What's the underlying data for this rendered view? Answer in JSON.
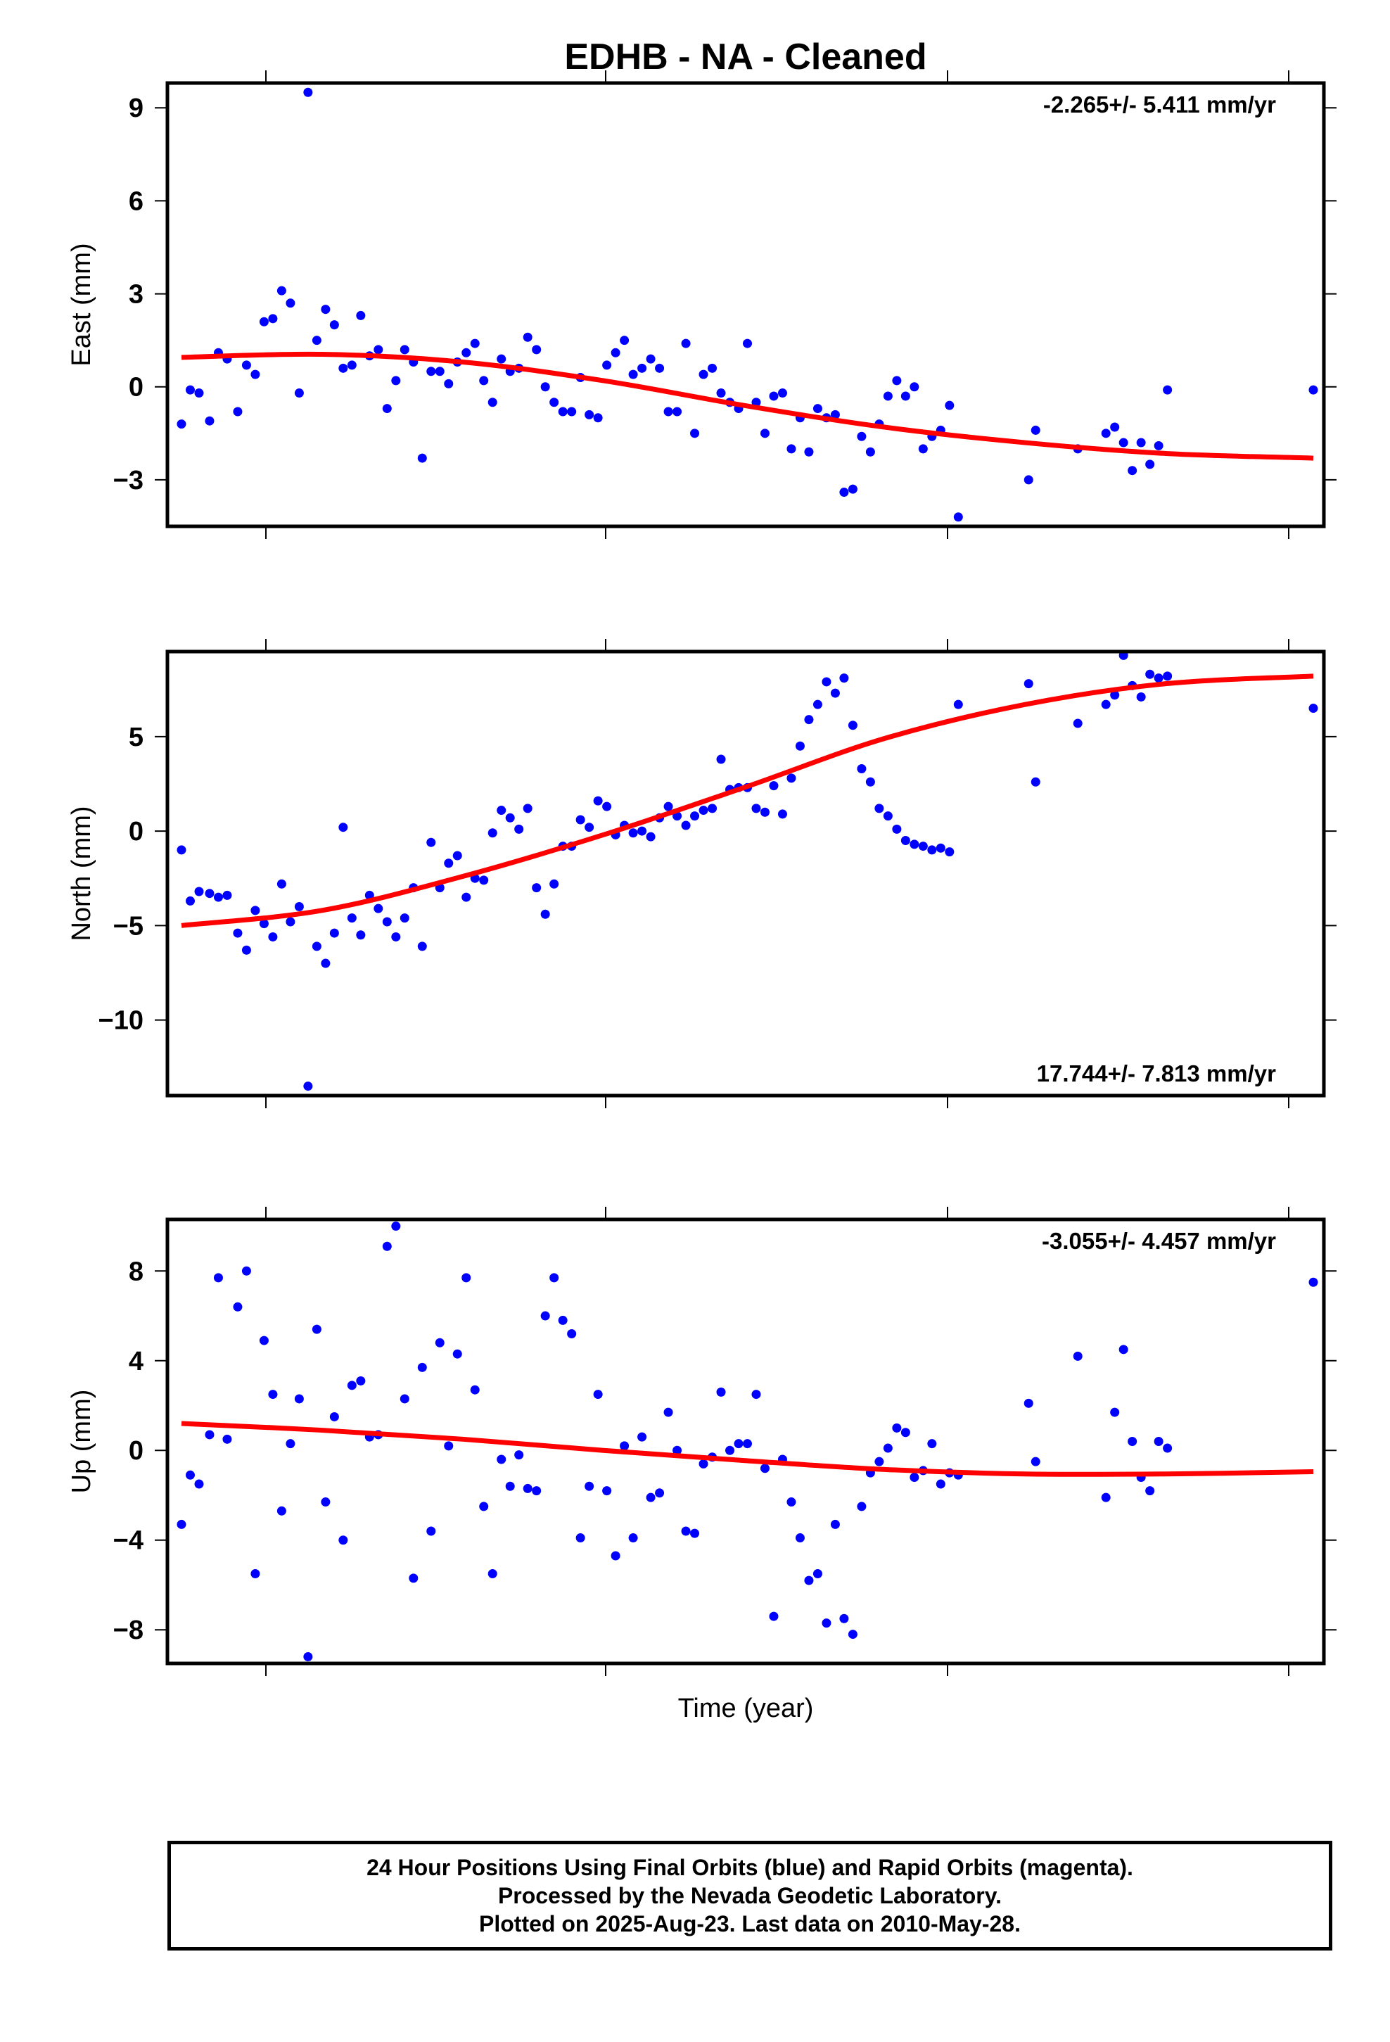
{
  "title": "EDHB  - NA - Cleaned",
  "xlabel": "Time (year)",
  "colors": {
    "points": "#0000ff",
    "fit": "#ff0000",
    "frame": "#000000"
  },
  "footer": {
    "line1": "24 Hour Positions Using Final Orbits (blue) and Rapid Orbits (magenta).",
    "line2": "Processed by the Nevada Geodetic Laboratory.",
    "line3": "Plotted on 2025-Aug-23. Last data on 2010-May-28."
  },
  "chart_data": [
    {
      "type": "scatter",
      "ylabel": "East (mm)",
      "rate_label": "-2.265+/- 5.411 mm/yr",
      "rate_position": "top-right",
      "ylim": [
        -4.5,
        9.8
      ],
      "yticks": [
        -3,
        0,
        3,
        6,
        9
      ],
      "yticklabels": [
        "−3",
        "0",
        "3",
        "6",
        "9"
      ],
      "x": [
        0.0,
        0.025,
        0.05,
        0.08,
        0.105,
        0.13,
        0.16,
        0.185,
        0.21,
        0.235,
        0.26,
        0.285,
        0.31,
        0.335,
        0.36,
        0.385,
        0.41,
        0.435,
        0.46,
        0.485,
        0.51,
        0.535,
        0.56,
        0.585,
        0.61,
        0.635,
        0.66,
        0.685,
        0.71,
        0.735,
        0.76,
        0.785,
        0.81,
        0.835,
        0.86,
        0.885,
        0.91,
        0.935,
        0.96,
        0.985,
        1.01,
        1.035,
        1.06,
        1.085,
        1.11,
        1.135,
        1.16,
        1.185,
        1.21,
        1.235,
        1.26,
        1.285,
        1.31,
        1.335,
        1.36,
        1.385,
        1.41,
        1.435,
        1.46,
        1.485,
        1.51,
        1.535,
        1.56,
        1.585,
        1.61,
        1.635,
        1.66,
        1.685,
        1.71,
        1.735,
        1.76,
        1.785,
        1.81,
        1.835,
        1.86,
        1.885,
        1.91,
        1.935,
        1.96,
        1.985,
        2.01,
        2.035,
        2.06,
        2.085,
        2.11,
        2.135,
        2.16,
        2.185,
        2.21,
        2.41,
        2.43,
        2.55,
        2.63,
        2.655,
        2.68,
        2.705,
        2.73,
        2.755,
        2.78,
        2.805,
        3.22
      ],
      "values": [
        -1.2,
        -0.1,
        -0.2,
        -1.1,
        1.1,
        0.9,
        -0.8,
        0.7,
        0.4,
        2.1,
        2.2,
        3.1,
        2.7,
        -0.2,
        9.5,
        1.5,
        2.5,
        2.0,
        0.6,
        0.7,
        2.3,
        1.0,
        1.2,
        -0.7,
        0.2,
        1.2,
        0.8,
        -2.3,
        0.5,
        0.5,
        0.1,
        0.8,
        1.1,
        1.4,
        0.2,
        -0.5,
        0.9,
        0.5,
        0.6,
        1.6,
        1.2,
        0.0,
        -0.5,
        -0.8,
        -0.8,
        0.3,
        -0.9,
        -1.0,
        0.7,
        1.1,
        1.5,
        0.4,
        0.6,
        0.9,
        0.6,
        -0.8,
        -0.8,
        1.4,
        -1.5,
        0.4,
        0.6,
        -0.2,
        -0.5,
        -0.7,
        1.4,
        -0.5,
        -1.5,
        -0.3,
        -0.2,
        -2.0,
        -1.0,
        -2.1,
        -0.7,
        -1.0,
        -0.9,
        -3.4,
        -3.3,
        -1.6,
        -2.1,
        -1.2,
        -0.3,
        0.2,
        -0.3,
        0.0,
        -2.0,
        -1.6,
        -1.4,
        -0.6,
        -4.2,
        -3.0,
        -1.4,
        -2.0,
        -1.5,
        -1.3,
        -1.8,
        -2.7,
        -1.8,
        -2.5,
        -1.9,
        -0.1,
        -0.1
      ],
      "fit": {
        "x": [
          0.0,
          0.4,
          0.8,
          1.2,
          1.6,
          2.0,
          2.4,
          2.8,
          3.22
        ],
        "values": [
          0.95,
          1.05,
          0.8,
          0.2,
          -0.6,
          -1.3,
          -1.8,
          -2.15,
          -2.3
        ]
      }
    },
    {
      "type": "scatter",
      "ylabel": "North (mm)",
      "rate_label": "17.744+/- 7.813 mm/yr",
      "rate_position": "bottom-right",
      "ylim": [
        -14.0,
        9.5
      ],
      "yticks": [
        -10,
        -5,
        0,
        5
      ],
      "yticklabels": [
        "−10",
        "−5",
        "0",
        "5"
      ],
      "x": [
        0.0,
        0.025,
        0.05,
        0.08,
        0.105,
        0.13,
        0.16,
        0.185,
        0.21,
        0.235,
        0.26,
        0.285,
        0.31,
        0.335,
        0.36,
        0.385,
        0.41,
        0.435,
        0.46,
        0.485,
        0.51,
        0.535,
        0.56,
        0.585,
        0.61,
        0.635,
        0.66,
        0.685,
        0.71,
        0.735,
        0.76,
        0.785,
        0.81,
        0.835,
        0.86,
        0.885,
        0.91,
        0.935,
        0.96,
        0.985,
        1.01,
        1.035,
        1.06,
        1.085,
        1.11,
        1.135,
        1.16,
        1.185,
        1.21,
        1.235,
        1.26,
        1.285,
        1.31,
        1.335,
        1.36,
        1.385,
        1.41,
        1.435,
        1.46,
        1.485,
        1.51,
        1.535,
        1.56,
        1.585,
        1.61,
        1.635,
        1.66,
        1.685,
        1.71,
        1.735,
        1.76,
        1.785,
        1.81,
        1.835,
        1.86,
        1.885,
        1.91,
        1.935,
        1.96,
        1.985,
        2.01,
        2.035,
        2.06,
        2.085,
        2.11,
        2.135,
        2.16,
        2.185,
        2.21,
        2.41,
        2.43,
        2.55,
        2.63,
        2.655,
        2.68,
        2.705,
        2.73,
        2.755,
        2.78,
        2.805,
        3.22
      ],
      "values": [
        -1.0,
        -3.7,
        -3.2,
        -3.3,
        -3.5,
        -3.4,
        -5.4,
        -6.3,
        -4.2,
        -4.9,
        -5.6,
        -2.8,
        -4.8,
        -4.0,
        -13.5,
        -6.1,
        -7.0,
        -5.4,
        0.2,
        -4.6,
        -5.5,
        -3.4,
        -4.1,
        -4.8,
        -5.6,
        -4.6,
        -3.0,
        -6.1,
        -0.6,
        -3.0,
        -1.7,
        -1.3,
        -3.5,
        -2.5,
        -2.6,
        -0.1,
        1.1,
        0.7,
        0.1,
        1.2,
        -3.0,
        -4.4,
        -2.8,
        -0.8,
        -0.8,
        0.6,
        0.2,
        1.6,
        1.3,
        -0.2,
        0.3,
        -0.1,
        0.0,
        -0.3,
        0.7,
        1.3,
        0.8,
        0.3,
        0.8,
        1.1,
        1.2,
        3.8,
        2.2,
        2.3,
        2.3,
        1.2,
        1.0,
        2.4,
        0.9,
        2.8,
        4.5,
        5.9,
        6.7,
        7.9,
        7.3,
        8.1,
        5.6,
        3.3,
        2.6,
        1.2,
        0.8,
        0.1,
        -0.5,
        -0.7,
        -0.8,
        -1.0,
        -0.9,
        -1.1,
        6.7,
        7.8,
        2.6,
        5.7,
        6.7,
        7.2,
        9.3,
        7.7,
        7.1,
        8.3,
        8.1,
        8.2,
        6.5
      ],
      "fit": {
        "x": [
          0.0,
          0.4,
          0.8,
          1.2,
          1.6,
          2.0,
          2.4,
          2.8,
          3.22
        ],
        "values": [
          -5.0,
          -4.2,
          -2.4,
          -0.2,
          2.3,
          4.9,
          6.7,
          7.8,
          8.2
        ]
      }
    },
    {
      "type": "scatter",
      "ylabel": "Up (mm)",
      "rate_label": "-3.055+/- 4.457 mm/yr",
      "rate_position": "top-right",
      "ylim": [
        -9.5,
        10.3
      ],
      "yticks": [
        -8,
        -4,
        0,
        4,
        8
      ],
      "yticklabels": [
        "−8",
        "−4",
        "0",
        "4",
        "8"
      ],
      "x": [
        0.0,
        0.025,
        0.05,
        0.08,
        0.105,
        0.13,
        0.16,
        0.185,
        0.21,
        0.235,
        0.26,
        0.285,
        0.31,
        0.335,
        0.36,
        0.385,
        0.41,
        0.435,
        0.46,
        0.485,
        0.51,
        0.535,
        0.56,
        0.585,
        0.61,
        0.635,
        0.66,
        0.685,
        0.71,
        0.735,
        0.76,
        0.785,
        0.81,
        0.835,
        0.86,
        0.885,
        0.91,
        0.935,
        0.96,
        0.985,
        1.01,
        1.035,
        1.06,
        1.085,
        1.11,
        1.135,
        1.16,
        1.185,
        1.21,
        1.235,
        1.26,
        1.285,
        1.31,
        1.335,
        1.36,
        1.385,
        1.41,
        1.435,
        1.46,
        1.485,
        1.51,
        1.535,
        1.56,
        1.585,
        1.61,
        1.635,
        1.66,
        1.685,
        1.71,
        1.735,
        1.76,
        1.785,
        1.81,
        1.835,
        1.86,
        1.885,
        1.91,
        1.935,
        1.96,
        1.985,
        2.01,
        2.035,
        2.06,
        2.085,
        2.11,
        2.135,
        2.16,
        2.185,
        2.21,
        2.41,
        2.43,
        2.55,
        2.63,
        2.655,
        2.68,
        2.705,
        2.73,
        2.755,
        2.78,
        2.805,
        3.22
      ],
      "values": [
        -3.3,
        -1.1,
        -1.5,
        0.7,
        7.7,
        0.5,
        6.4,
        8.0,
        -5.5,
        4.9,
        2.5,
        -2.7,
        0.3,
        2.3,
        -9.2,
        5.4,
        -2.3,
        1.5,
        -4.0,
        2.9,
        3.1,
        0.6,
        0.7,
        9.1,
        10.0,
        2.3,
        -5.7,
        3.7,
        -3.6,
        4.8,
        0.2,
        4.3,
        7.7,
        2.7,
        -2.5,
        -5.5,
        -0.4,
        -1.6,
        -0.2,
        -1.7,
        -1.8,
        6.0,
        7.7,
        5.8,
        5.2,
        -3.9,
        -1.6,
        2.5,
        -1.8,
        -4.7,
        0.2,
        -3.9,
        0.6,
        -2.1,
        -1.9,
        1.7,
        0.0,
        -3.6,
        -3.7,
        -0.6,
        -0.3,
        2.6,
        0.0,
        0.3,
        0.3,
        2.5,
        -0.8,
        -7.4,
        -0.4,
        -2.3,
        -3.9,
        -5.8,
        -5.5,
        -7.7,
        -3.3,
        -7.5,
        -8.2,
        -2.5,
        -1.0,
        -0.5,
        0.1,
        1.0,
        0.8,
        -1.2,
        -0.9,
        0.3,
        -1.5,
        -1.0,
        -1.1,
        2.1,
        -0.5,
        4.2,
        -2.1,
        1.7,
        4.5,
        0.4,
        -1.2,
        -1.8,
        0.4,
        0.1,
        7.5
      ],
      "fit": {
        "x": [
          0.0,
          0.4,
          0.8,
          1.2,
          1.6,
          2.0,
          2.4,
          2.8,
          3.22
        ],
        "values": [
          1.2,
          0.9,
          0.5,
          0.0,
          -0.45,
          -0.85,
          -1.05,
          -1.05,
          -0.95
        ]
      }
    }
  ]
}
